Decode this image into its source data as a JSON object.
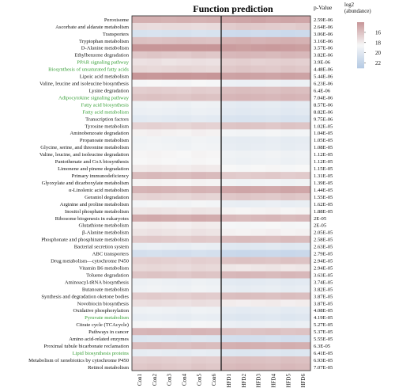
{
  "chart_data": {
    "type": "heatmap",
    "title": "Function prediction",
    "columns": [
      "Con1",
      "Con2",
      "Con3",
      "Con4",
      "Con5",
      "Con6",
      "HFD1",
      "HFD2",
      "HFD3",
      "HFD4",
      "HFD5",
      "HFD6"
    ],
    "rows": [
      {
        "name": "Peroxisome",
        "p": "2.59E-06",
        "green": false,
        "values": [
          15.2,
          15.2,
          15.3,
          15.2,
          15.3,
          15.2,
          14.8,
          14.7,
          14.6,
          14.8,
          14.7,
          14.8
        ]
      },
      {
        "name": "Ascorbate and aldarate metabolism",
        "p": "2.64E-06",
        "green": false,
        "values": [
          17.2,
          17.3,
          17.2,
          17.2,
          17.3,
          17.2,
          16.5,
          16.3,
          16.4,
          16.5,
          16.6,
          16.4
        ]
      },
      {
        "name": "Transporters",
        "p": "3.06E-06",
        "green": false,
        "values": [
          20.6,
          20.5,
          20.6,
          20.7,
          20.5,
          20.6,
          21.2,
          21.3,
          21.1,
          21.2,
          21.4,
          21.3
        ]
      },
      {
        "name": "Tryptophan metabolism",
        "p": "3.16E-06",
        "green": false,
        "values": [
          16.0,
          16.1,
          16.0,
          15.9,
          16.0,
          16.1,
          15.3,
          15.2,
          15.4,
          15.3,
          15.2,
          15.3
        ]
      },
      {
        "name": "D-Alanine metabolism",
        "p": "3.57E-06",
        "green": false,
        "values": [
          13.8,
          13.9,
          13.8,
          13.9,
          13.8,
          13.7,
          14.3,
          14.4,
          14.3,
          14.2,
          14.3,
          14.4
        ]
      },
      {
        "name": "Ethylbenzene degradation",
        "p": "3.82E-06",
        "green": false,
        "values": [
          16.3,
          16.2,
          16.3,
          16.4,
          16.2,
          16.3,
          15.6,
          15.5,
          15.6,
          15.7,
          15.5,
          15.6
        ]
      },
      {
        "name": "PPAR signaling pathway",
        "p": "3.9E-06",
        "green": true,
        "values": [
          17.5,
          17.4,
          17.6,
          17.5,
          17.4,
          17.5,
          16.7,
          16.6,
          16.8,
          16.7,
          16.6,
          16.7
        ]
      },
      {
        "name": "Biosynthesis of unsaturated fatty acids",
        "p": "4.48E-06",
        "green": true,
        "values": [
          17.0,
          17.1,
          17.0,
          16.9,
          17.0,
          17.1,
          16.3,
          16.2,
          16.3,
          16.4,
          16.2,
          16.3
        ]
      },
      {
        "name": "Lipoic acid metabolism",
        "p": "5.44E-06",
        "green": false,
        "values": [
          14.0,
          14.1,
          14.0,
          14.0,
          14.1,
          14.0,
          14.6,
          14.5,
          14.6,
          14.7,
          14.5,
          14.6
        ]
      },
      {
        "name": "Valine, leucine and isoleucine biosynthesis",
        "p": "6.23E-06",
        "green": false,
        "values": [
          18.6,
          18.5,
          18.6,
          18.7,
          18.5,
          18.6,
          19.2,
          19.3,
          19.2,
          19.1,
          19.3,
          19.2
        ]
      },
      {
        "name": "Lysine degradation",
        "p": "6.4E-06",
        "green": false,
        "values": [
          16.6,
          16.5,
          16.6,
          16.7,
          16.5,
          16.6,
          15.9,
          15.8,
          15.9,
          16.0,
          15.8,
          15.9
        ]
      },
      {
        "name": "Adipocytokine signaling pathway",
        "p": "7.04E-06",
        "green": true,
        "values": [
          16.1,
          16.0,
          16.1,
          16.2,
          16.0,
          16.1,
          15.5,
          15.4,
          15.5,
          15.6,
          15.4,
          15.5
        ]
      },
      {
        "name": "Fatty acid biosynthesis",
        "p": "8.57E-06",
        "green": true,
        "values": [
          19.1,
          19.0,
          19.1,
          19.2,
          19.0,
          19.1,
          19.7,
          19.8,
          19.7,
          19.6,
          19.8,
          19.7
        ]
      },
      {
        "name": "Fatty acid metabolism",
        "p": "8.82E-06",
        "green": true,
        "values": [
          19.3,
          19.2,
          19.3,
          19.4,
          19.2,
          19.3,
          19.9,
          20.0,
          19.9,
          19.8,
          20.0,
          19.9
        ]
      },
      {
        "name": "Transcription factors",
        "p": "9.75E-06",
        "green": false,
        "values": [
          19.8,
          19.7,
          19.8,
          19.9,
          19.7,
          19.8,
          20.4,
          20.5,
          20.4,
          20.3,
          20.5,
          20.4
        ]
      },
      {
        "name": "Tyrosine metabolism",
        "p": "1.02E-05",
        "green": false,
        "values": [
          16.8,
          16.7,
          16.8,
          16.9,
          16.7,
          16.8,
          16.2,
          16.1,
          16.2,
          16.3,
          16.1,
          16.2
        ]
      },
      {
        "name": "Aminobenzoate degradation",
        "p": "1.04E-05",
        "green": false,
        "values": [
          18.2,
          18.1,
          18.2,
          18.3,
          18.1,
          18.2,
          18.8,
          18.9,
          18.8,
          18.7,
          18.9,
          18.8
        ]
      },
      {
        "name": "Propanoate metabolism",
        "p": "1.05E-05",
        "green": false,
        "values": [
          19.0,
          18.9,
          19.0,
          19.1,
          18.9,
          19.0,
          19.6,
          19.7,
          19.6,
          19.5,
          19.7,
          19.6
        ]
      },
      {
        "name": "Glycine, serine, and threonine metabolism",
        "p": "1.08E-05",
        "green": false,
        "values": [
          18.9,
          18.8,
          18.9,
          19.0,
          18.8,
          18.9,
          19.5,
          19.6,
          19.5,
          19.4,
          19.6,
          19.5
        ]
      },
      {
        "name": "Valine, leucine, and isoleucine degradation",
        "p": "1.12E-05",
        "green": false,
        "values": [
          18.4,
          18.3,
          18.4,
          18.5,
          18.3,
          18.4,
          19.0,
          19.1,
          19.0,
          18.9,
          19.1,
          19.0
        ]
      },
      {
        "name": "Pantothenate and CoA biosynthesis",
        "p": "1.12E-05",
        "green": false,
        "values": [
          18.5,
          18.4,
          18.5,
          18.6,
          18.4,
          18.5,
          19.1,
          19.2,
          19.1,
          19.0,
          19.2,
          19.1
        ]
      },
      {
        "name": "Limonene and pinene degradation",
        "p": "1.15E-05",
        "green": false,
        "values": [
          17.9,
          17.8,
          17.9,
          18.0,
          17.8,
          17.9,
          18.5,
          18.6,
          18.5,
          18.4,
          18.6,
          18.5
        ]
      },
      {
        "name": "Primary immunodeficiency",
        "p": "1.31E-05",
        "green": false,
        "values": [
          15.7,
          15.6,
          15.7,
          15.8,
          15.6,
          15.7,
          16.4,
          16.5,
          16.4,
          16.3,
          16.5,
          16.4
        ]
      },
      {
        "name": "Glyoxylate and dicarboxylate metabolism",
        "p": "1.39E-05",
        "green": false,
        "values": [
          18.3,
          18.2,
          18.3,
          18.4,
          18.2,
          18.3,
          18.9,
          19.0,
          18.9,
          18.8,
          19.0,
          18.9
        ]
      },
      {
        "name": "α-Linolenic acid metabolism",
        "p": "1.44E-05",
        "green": false,
        "values": [
          15.4,
          15.3,
          15.4,
          15.5,
          15.3,
          15.4,
          14.8,
          14.7,
          14.8,
          14.9,
          14.7,
          14.8
        ]
      },
      {
        "name": "Geraniol degradation",
        "p": "1.55E-05",
        "green": false,
        "values": [
          16.9,
          16.8,
          16.9,
          17.0,
          16.8,
          16.9,
          16.3,
          16.2,
          16.3,
          16.4,
          16.2,
          16.3
        ]
      },
      {
        "name": "Arginine and proline metabolism",
        "p": "1.62E-05",
        "green": false,
        "values": [
          18.8,
          18.7,
          18.8,
          18.9,
          18.7,
          18.8,
          19.4,
          19.5,
          19.4,
          19.3,
          19.5,
          19.4
        ]
      },
      {
        "name": "Inositol phosphate metabolism",
        "p": "1.88E-05",
        "green": false,
        "values": [
          17.7,
          17.6,
          17.7,
          17.8,
          17.6,
          17.7,
          18.3,
          18.4,
          18.3,
          18.2,
          18.4,
          18.3
        ]
      },
      {
        "name": "Ribosome biogenesis in eukaryotes",
        "p": "2E-05",
        "green": false,
        "values": [
          15.0,
          14.9,
          15.0,
          15.1,
          14.9,
          15.0,
          15.6,
          15.7,
          15.6,
          15.5,
          15.7,
          15.6
        ]
      },
      {
        "name": "Glutathione metabolism",
        "p": "2E-05",
        "green": false,
        "values": [
          18.0,
          17.9,
          18.0,
          18.1,
          17.9,
          18.0,
          18.6,
          18.7,
          18.6,
          18.5,
          18.7,
          18.6
        ]
      },
      {
        "name": "β-Alanine metabolism",
        "p": "2.05E-05",
        "green": false,
        "values": [
          17.6,
          17.5,
          17.6,
          17.7,
          17.5,
          17.6,
          18.2,
          18.3,
          18.2,
          18.1,
          18.3,
          18.2
        ]
      },
      {
        "name": "Phosphonate and phosphinate metabolism",
        "p": "2.58E-05",
        "green": false,
        "values": [
          16.4,
          16.3,
          16.4,
          16.5,
          16.3,
          16.4,
          15.8,
          15.7,
          15.8,
          15.9,
          15.7,
          15.8
        ]
      },
      {
        "name": "Bacterial secretion system",
        "p": "2.63E-05",
        "green": false,
        "values": [
          19.4,
          19.3,
          19.4,
          19.5,
          19.3,
          19.4,
          20.0,
          20.1,
          20.0,
          19.9,
          20.1,
          20.0
        ]
      },
      {
        "name": "ABC transporters",
        "p": "2.79E-05",
        "green": false,
        "values": [
          20.8,
          20.7,
          20.8,
          20.9,
          20.7,
          20.8,
          21.5,
          21.6,
          21.5,
          21.4,
          21.6,
          21.5
        ]
      },
      {
        "name": "Drug metabolism—cytochrome P450",
        "p": "2.94E-05",
        "green": false,
        "values": [
          16.7,
          16.6,
          16.7,
          16.8,
          16.6,
          16.7,
          16.1,
          16.0,
          16.1,
          16.2,
          16.0,
          16.1
        ]
      },
      {
        "name": "Vitamin B6 metabolism",
        "p": "2.94E-05",
        "green": false,
        "values": [
          17.1,
          17.0,
          17.1,
          17.2,
          17.0,
          17.1,
          17.7,
          17.8,
          17.7,
          17.6,
          17.8,
          17.7
        ]
      },
      {
        "name": "Toluene degradation",
        "p": "3.63E-05",
        "green": false,
        "values": [
          16.2,
          16.1,
          16.2,
          16.3,
          16.1,
          16.2,
          15.6,
          15.5,
          15.6,
          15.7,
          15.5,
          15.6
        ]
      },
      {
        "name": "Aminoacyl-tRNA biosynthesis",
        "p": "3.74E-05",
        "green": false,
        "values": [
          19.2,
          19.1,
          19.2,
          19.3,
          19.1,
          19.2,
          19.8,
          19.9,
          19.8,
          19.7,
          19.9,
          19.8
        ]
      },
      {
        "name": "Butanoate metabolism",
        "p": "3.82E-05",
        "green": false,
        "values": [
          19.0,
          18.9,
          19.0,
          19.1,
          18.9,
          19.0,
          19.5,
          19.6,
          19.5,
          19.4,
          19.6,
          19.5
        ]
      },
      {
        "name": "Synthesis and degradation oketone bodies",
        "p": "3.87E-05",
        "green": false,
        "values": [
          16.5,
          16.4,
          16.5,
          16.6,
          16.4,
          16.5,
          15.9,
          15.8,
          15.9,
          16.0,
          15.8,
          15.9
        ]
      },
      {
        "name": "Novobiocin biosynthesis",
        "p": "3.87E-05",
        "green": false,
        "values": [
          17.4,
          17.3,
          17.4,
          17.5,
          17.3,
          17.4,
          18.0,
          18.1,
          18.0,
          17.9,
          18.1,
          18.0
        ]
      },
      {
        "name": "Oxidative phosphorylation",
        "p": "4.08E-05",
        "green": false,
        "values": [
          19.1,
          19.0,
          19.1,
          19.2,
          19.0,
          19.1,
          19.7,
          19.8,
          19.7,
          19.6,
          19.8,
          19.7
        ]
      },
      {
        "name": "Pyruvate metabolism",
        "p": "4.19E-05",
        "green": true,
        "values": [
          19.5,
          19.4,
          19.5,
          19.6,
          19.4,
          19.5,
          20.1,
          20.2,
          20.1,
          20.0,
          20.2,
          20.1
        ]
      },
      {
        "name": "Citrate cycle (TCAcycle)",
        "p": "5.27E-05",
        "green": false,
        "values": [
          18.7,
          18.6,
          18.7,
          18.8,
          18.6,
          18.7,
          19.3,
          19.4,
          19.3,
          19.2,
          19.4,
          19.3
        ]
      },
      {
        "name": "Pathways in cancer",
        "p": "5.37E-05",
        "green": false,
        "values": [
          15.5,
          15.4,
          15.5,
          15.6,
          15.4,
          15.5,
          16.1,
          16.2,
          16.1,
          16.0,
          16.2,
          16.1
        ]
      },
      {
        "name": "Amino acid-related enzymes",
        "p": "5.55E-05",
        "green": false,
        "values": [
          20.2,
          20.1,
          20.2,
          20.3,
          20.1,
          20.2,
          20.8,
          20.9,
          20.8,
          20.7,
          20.9,
          20.8
        ]
      },
      {
        "name": "Proximal tubule bicarbonate reclamation",
        "p": "6.3E-05",
        "green": false,
        "values": [
          15.8,
          15.7,
          15.8,
          15.9,
          15.7,
          15.8,
          15.2,
          15.1,
          15.2,
          15.3,
          15.1,
          15.2
        ]
      },
      {
        "name": "Lipid biosynthesis proteins",
        "p": "6.41E-05",
        "green": true,
        "values": [
          19.6,
          19.5,
          19.6,
          19.7,
          19.5,
          19.6,
          20.2,
          20.3,
          20.2,
          20.1,
          20.3,
          20.2
        ]
      },
      {
        "name": "Metabolism of xenobiotics by cytochrome P450",
        "p": "6.93E-05",
        "green": false,
        "values": [
          16.6,
          16.5,
          16.6,
          16.7,
          16.5,
          16.6,
          16.0,
          15.9,
          16.0,
          16.1,
          15.9,
          16.0
        ]
      },
      {
        "name": "Retinol metabolism",
        "p": "7.07E-05",
        "green": false,
        "values": [
          16.3,
          16.2,
          16.3,
          16.4,
          16.2,
          16.3,
          15.7,
          15.6,
          15.7,
          15.8,
          15.6,
          15.7
        ]
      }
    ],
    "pvalue_header": "p-Value",
    "legend": {
      "title_lines": [
        "log2",
        "(abundance)"
      ],
      "ticks": [
        16,
        18,
        20,
        22
      ],
      "range": [
        14,
        23
      ],
      "colors": {
        "low": "#c79698",
        "mid": "#f7f7f7",
        "high": "#b3c9e4"
      }
    },
    "group_divider_after_column": 6,
    "colors": {
      "label_green": "#3aa03a",
      "label_black": "#111111"
    }
  }
}
